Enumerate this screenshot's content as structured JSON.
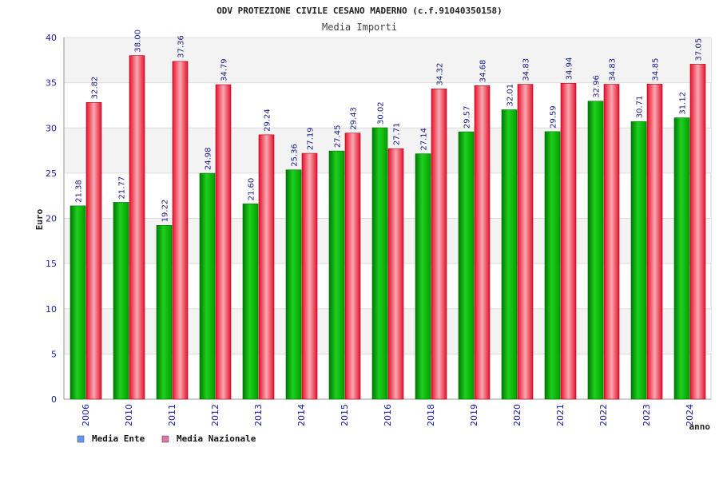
{
  "chart_data": {
    "type": "bar",
    "title": "ODV PROTEZIONE CIVILE CESANO MADERNO (c.f.91040350158)",
    "subtitle": "Media Importi",
    "ylabel": "Euro",
    "xlabel": "anno",
    "ylim": [
      0,
      40
    ],
    "yticks": [
      0,
      5,
      10,
      15,
      20,
      25,
      30,
      35,
      40
    ],
    "grid": true,
    "legend_position": "bottom-left",
    "categories": [
      "2006",
      "2010",
      "2011",
      "2012",
      "2013",
      "2014",
      "2015",
      "2016",
      "2018",
      "2019",
      "2020",
      "2021",
      "2022",
      "2023",
      "2024"
    ],
    "series": [
      {
        "name": "Media Ente",
        "color": "#00a000",
        "legend_color": "#6699ee",
        "values": [
          21.38,
          21.77,
          19.22,
          24.98,
          21.6,
          25.36,
          27.45,
          30.02,
          27.14,
          29.57,
          32.01,
          29.59,
          32.96,
          30.71,
          31.12
        ],
        "labels": [
          "21.38",
          "21.77",
          "19.22",
          "24.98",
          "21.60",
          "25.36",
          "27.45",
          "30.02",
          "27.14",
          "29.57",
          "32.01",
          "29.59",
          "32.96",
          "30.71",
          "31.12"
        ]
      },
      {
        "name": "Media Nazionale",
        "color": "#e8102a",
        "legend_color": "#dd77aa",
        "values": [
          32.82,
          38.0,
          37.36,
          34.79,
          29.24,
          27.19,
          29.43,
          27.71,
          34.32,
          34.68,
          34.83,
          34.94,
          34.83,
          34.85,
          37.05
        ],
        "labels": [
          "32.82",
          "38.00",
          "37.36",
          "34.79",
          "29.24",
          "27.19",
          "29.43",
          "27.71",
          "34.32",
          "34.68",
          "34.83",
          "34.94",
          "34.83",
          "34.85",
          "37.05"
        ]
      }
    ]
  }
}
